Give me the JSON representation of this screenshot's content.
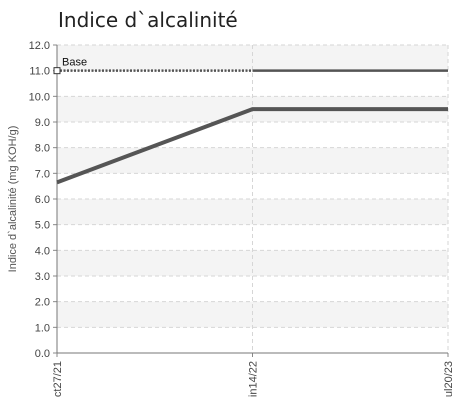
{
  "chart_data": {
    "type": "line",
    "title": "Indice d`alcalinité",
    "ylabel": "Indice d`alcalinité (mg KOH/g)",
    "xlabel": "",
    "x_tick_labels": [
      "ct27/21",
      "in14/22",
      "ul20/23"
    ],
    "y_ticks": [
      "0.0",
      "1.0",
      "2.0",
      "3.0",
      "4.0",
      "5.0",
      "6.0",
      "7.0",
      "8.0",
      "9.0",
      "10.0",
      "11.0",
      "12.0"
    ],
    "ylim": [
      0,
      12
    ],
    "grid": true,
    "series": [
      {
        "values": [
          6.65,
          9.5,
          9.5
        ],
        "color": "#555555",
        "style": "solid"
      }
    ],
    "reference_lines": [
      {
        "name": "Base",
        "value": 11.0,
        "color": "#555555",
        "style": "dotted-then-solid"
      }
    ]
  }
}
